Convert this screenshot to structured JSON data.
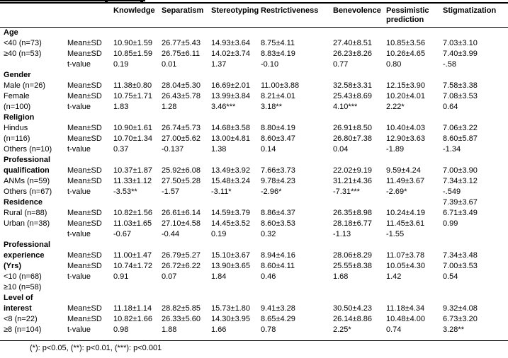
{
  "table": {
    "columns": [
      "",
      "",
      "Knowledge",
      "Separatism",
      "Stereotyping",
      "Restrictiveness",
      "Benevolence",
      "Pessimistic prediction",
      "Stigmatization"
    ],
    "rows": [
      {
        "label": "Age",
        "bold": true,
        "stat": "",
        "values": [
          "",
          "",
          "",
          "",
          "",
          "",
          ""
        ]
      },
      {
        "label": "<40 (n=73)",
        "bold": false,
        "stat": "Mean±SD",
        "values": [
          "10.90±1.59",
          "26.77±5.43",
          "14.93±3.64",
          "8.75±4.11",
          "27.40±8.51",
          "10.85±3.56",
          "7.03±3.10"
        ]
      },
      {
        "label": "≥40 (n=53)",
        "bold": false,
        "stat": "Mean±SD",
        "values": [
          "10.85±1.59",
          "26.75±6.11",
          "14.02±3.74",
          "8.83±4.19",
          "26.23±8.26",
          "10.26±4.65",
          "7.40±3.99"
        ]
      },
      {
        "label": "",
        "bold": false,
        "stat": "t-value",
        "values": [
          "0.19",
          "0.01",
          "1.37",
          "-0.10",
          "0.77",
          "0.80",
          "-.58"
        ]
      },
      {
        "label": "Gender",
        "bold": true,
        "stat": "",
        "values": [
          "",
          "",
          "",
          "",
          "",
          "",
          ""
        ]
      },
      {
        "label": "Male (n=26)",
        "bold": false,
        "stat": "Mean±SD",
        "values": [
          "11.38±0.80",
          "28.04±5.30",
          "16.69±2.01",
          "11.00±3.88",
          "32.58±3.31",
          "12.15±3.90",
          "7.58±3.38"
        ]
      },
      {
        "label": "Female",
        "bold": false,
        "stat": "Mean±SD",
        "values": [
          "10.75±1.71",
          "26.43±5.78",
          "13.99±3.84",
          "8.21±4.01",
          "25.43±8.69",
          "10.20±4.01",
          "7.08±3.53"
        ]
      },
      {
        "label": "(n=100)",
        "bold": false,
        "stat": "t-value",
        "values": [
          "1.83",
          "1.28",
          "3.46***",
          "3.18**",
          "4.10***",
          "2.22*",
          "0.64"
        ]
      },
      {
        "label": "Religion",
        "bold": true,
        "stat": "",
        "values": [
          "",
          "",
          "",
          "",
          "",
          "",
          ""
        ]
      },
      {
        "label": "Hindus",
        "bold": false,
        "stat": "Mean±SD",
        "values": [
          "10.90±1.61",
          "26.74±5.73",
          "14.68±3.58",
          "8.80±4.19",
          "26.91±8.50",
          "10.40±4.03",
          "7.06±3.22"
        ]
      },
      {
        "label": "(n=116)",
        "bold": false,
        "stat": "Mean±SD",
        "values": [
          "10.70±1.34",
          "27.00±5.62",
          "13.00±4.81",
          "8.60±3.47",
          "26.80±7.38",
          "12.90±3.63",
          "8.60±5.87"
        ]
      },
      {
        "label": "Others (n=10)",
        "bold": false,
        "stat": "t-value",
        "values": [
          "0.37",
          "-0.137",
          "1.38",
          "0.14",
          "0.04",
          "-1.89",
          "-1.34"
        ]
      },
      {
        "label": "Professional",
        "bold": true,
        "stat": "",
        "values": [
          "",
          "",
          "",
          "",
          "",
          "",
          ""
        ]
      },
      {
        "label": "qualification",
        "bold": true,
        "stat": "Mean±SD",
        "values": [
          "10.37±1.87",
          "25.92±6.08",
          "13.49±3.92",
          "7.66±3.73",
          "22.02±9.19",
          "9.59±4.24",
          "7.00±3.90"
        ]
      },
      {
        "label": "ANMs (n=59)",
        "bold": false,
        "stat": "Mean±SD",
        "values": [
          "11.33±1.12",
          "27.50±5.28",
          "15.48±3.24",
          "9.78±4.23",
          "31.21±4.36",
          "11.49±3.67",
          "7.34±3.12"
        ]
      },
      {
        "label": "Others (n=67)",
        "bold": false,
        "stat": "t-value",
        "values": [
          "-3.53**",
          "-1.57",
          "-3.11*",
          "-2.96*",
          "-7.31***",
          "-2.69*",
          "-.549"
        ]
      },
      {
        "label": "Residence",
        "bold": true,
        "stat": "",
        "values": [
          "",
          "",
          "",
          "",
          "",
          "",
          "7.39±3.67"
        ]
      },
      {
        "label": "Rural (n=88)",
        "bold": false,
        "stat": "Mean±SD",
        "values": [
          "10.82±1.56",
          "26.61±6.14",
          "14.59±3.79",
          "8.86±4.37",
          "26.35±8.98",
          "10.24±4.19",
          "6.71±3.49"
        ]
      },
      {
        "label": "Urban (n=38)",
        "bold": false,
        "stat": "Mean±SD",
        "values": [
          "11.03±1.65",
          "27.10±4.58",
          "14.45±3.52",
          "8.60±3.53",
          "28.18±6.77",
          "11.45±3.61",
          "0.99"
        ]
      },
      {
        "label": "",
        "bold": false,
        "stat": "t-value",
        "values": [
          "-0.67",
          "-0.44",
          "0.19",
          "0.32",
          "-1.13",
          "-1.55",
          ""
        ]
      },
      {
        "label": "Professional",
        "bold": true,
        "stat": "",
        "values": [
          "",
          "",
          "",
          "",
          "",
          "",
          ""
        ]
      },
      {
        "label": "experience",
        "bold": true,
        "stat": "Mean±SD",
        "values": [
          "11.00±1.47",
          "26.79±5.27",
          "15.10±3.67",
          "8.94±4.16",
          "28.06±8.29",
          "11.07±3.78",
          "7.34±3.48"
        ]
      },
      {
        "label": "(Yrs)",
        "bold": true,
        "stat": "Mean±SD",
        "values": [
          "10.74±1.72",
          "26.72±6.22",
          "13.90±3.65",
          "8.60±4.11",
          "25.55±8.38",
          "10.05±4.30",
          "7.00±3.53"
        ]
      },
      {
        "label": "<10 (n=68)",
        "bold": false,
        "stat": "t-value",
        "values": [
          "0.91",
          "0.07",
          "1.84",
          "0.46",
          "1.68",
          "1.42",
          "0.54"
        ]
      },
      {
        "label": "≥10 (n=58)",
        "bold": false,
        "stat": "",
        "values": [
          "",
          "",
          "",
          "",
          "",
          "",
          ""
        ]
      },
      {
        "label": "Level of",
        "bold": true,
        "stat": "",
        "values": [
          "",
          "",
          "",
          "",
          "",
          "",
          ""
        ]
      },
      {
        "label": "interest",
        "bold": true,
        "stat": "Mean±SD",
        "values": [
          "11.18±1.14",
          "28.82±5.85",
          "15.73±1.80",
          "9.41±3.28",
          "30.50±4.23",
          "11.18±4.34",
          "9.32±4.08"
        ]
      },
      {
        "label": "<8 (n=22)",
        "bold": false,
        "stat": "Mean±SD",
        "values": [
          "10.82±1.66",
          "26.33±5.60",
          "14.30±3.95",
          "8.65±4.29",
          "26.14±8.86",
          "10.48±4.00",
          "6.73±3.20"
        ]
      },
      {
        "label": "≥8 (n=104)",
        "bold": false,
        "stat": "t-value",
        "values": [
          "0.98",
          "1.88",
          "1.66",
          "0.78",
          "2.25*",
          "0.74",
          "3.28**"
        ]
      }
    ],
    "footnote": "(*): p<0.05, (**): p<0.01, (***): p<0.001"
  }
}
